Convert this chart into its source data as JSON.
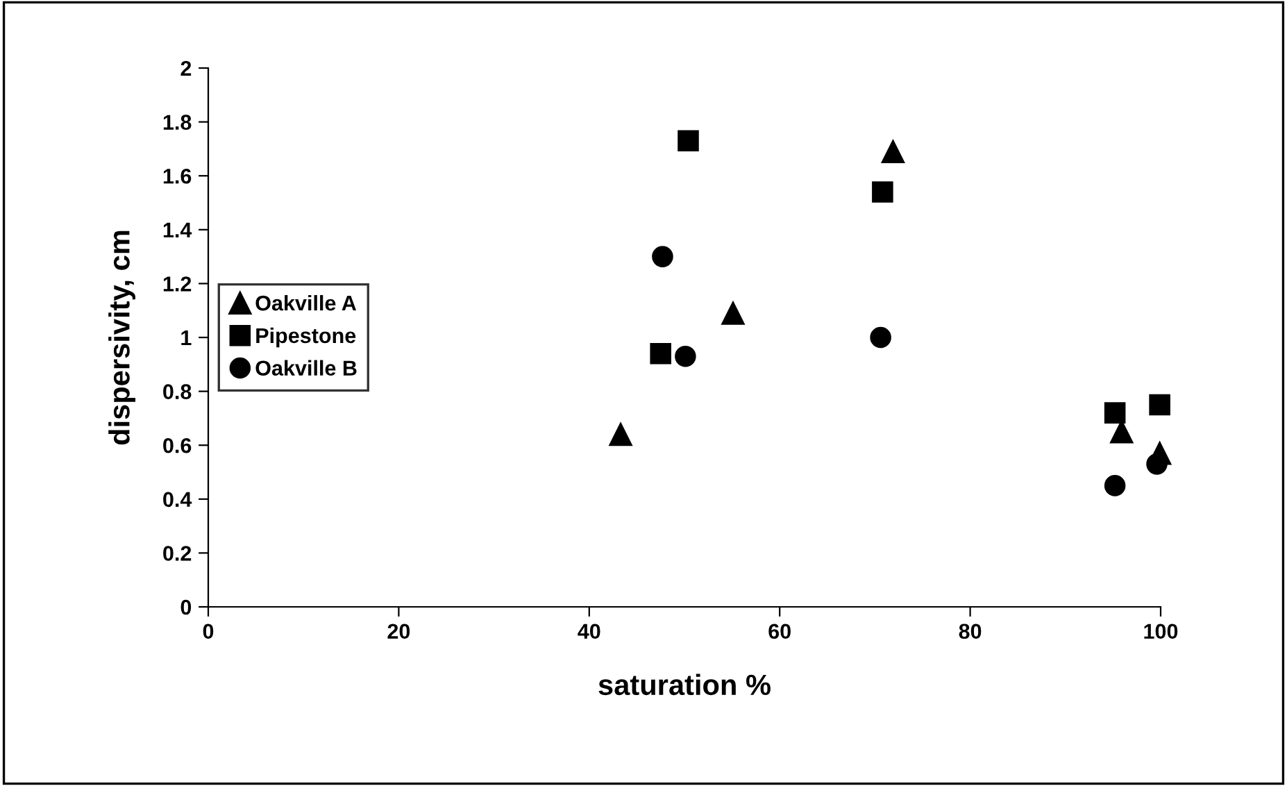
{
  "chart_data": {
    "type": "scatter",
    "xlabel": "saturation %",
    "ylabel": "dispersivity, cm",
    "xlim": [
      0,
      100
    ],
    "xticks": [
      0,
      20,
      40,
      60,
      80,
      100
    ],
    "ylim": [
      0,
      2
    ],
    "yticks": [
      0,
      0.2,
      0.4,
      0.6,
      0.8,
      1,
      1.2,
      1.4,
      1.6,
      1.8,
      2
    ],
    "grid": false,
    "legend": "center left",
    "series": [
      {
        "name": "Oakville A",
        "color": "#000000",
        "marker": "triangle",
        "x": [
          43.3,
          55.1,
          71.9,
          95.9,
          99.9
        ],
        "values": [
          0.64,
          1.09,
          1.69,
          0.65,
          0.57
        ]
      },
      {
        "name": "Pipestone",
        "color": "#000000",
        "marker": "square",
        "x": [
          50.4,
          47.5,
          70.8,
          95.2,
          99.9
        ],
        "values": [
          1.73,
          0.94,
          1.54,
          0.72,
          0.75
        ]
      },
      {
        "name": "Oakville B",
        "color": "#000000",
        "marker": "circle",
        "x": [
          47.7,
          50.1,
          70.6,
          95.2,
          99.6
        ],
        "values": [
          1.3,
          0.93,
          1.0,
          0.45,
          0.53
        ]
      }
    ]
  }
}
